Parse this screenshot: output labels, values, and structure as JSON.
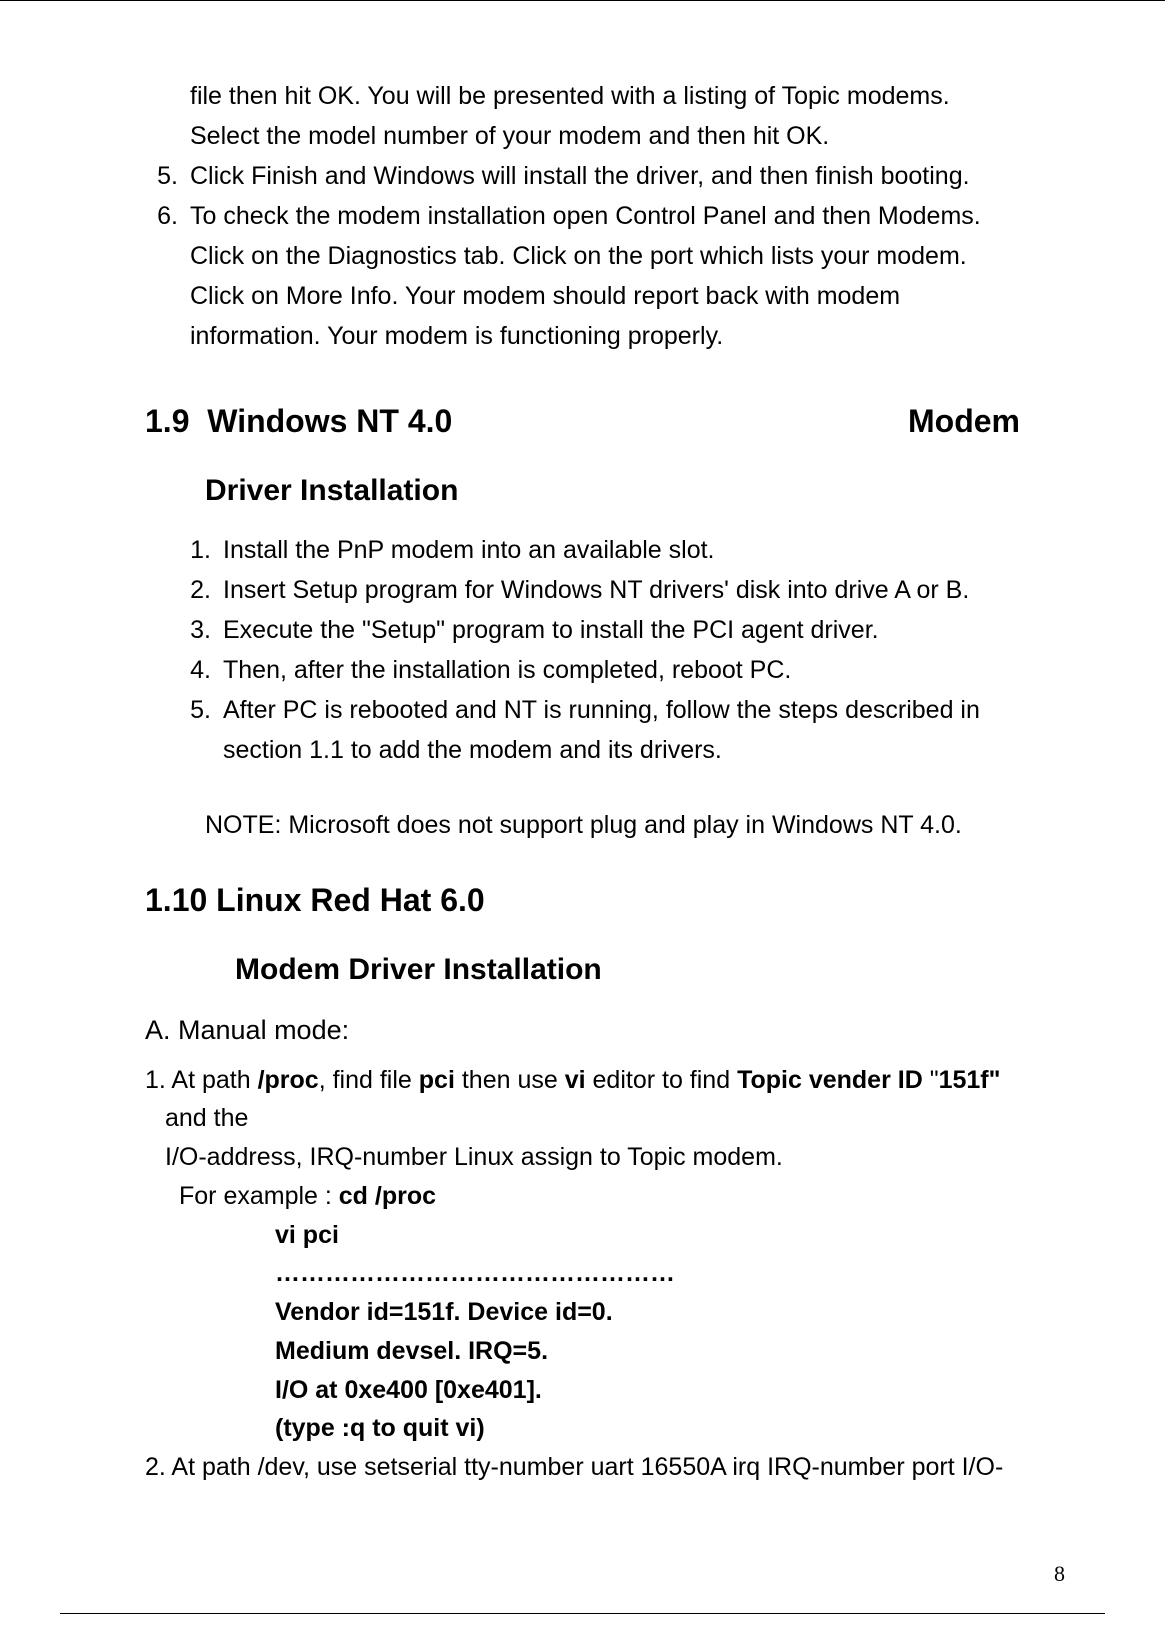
{
  "top_list": {
    "items": [
      {
        "num": "",
        "text": "file then hit OK. You will be presented with a listing of Topic modems. Select the model number of your modem and then hit OK."
      },
      {
        "num": "5.",
        "text": "Click Finish and Windows will install the driver, and then finish booting."
      },
      {
        "num": "6.",
        "text": "To check the modem installation open Control Panel and then Modems. Click on the Diagnostics tab. Click on the port which lists your modem. Click on More Info. Your modem should report back with modem information. Your modem is functioning properly."
      }
    ]
  },
  "section_19": {
    "number": "1.9",
    "title_left": "Windows NT 4.0",
    "title_right": "Modem",
    "subtitle": "Driver Installation",
    "items": [
      {
        "num": "1.",
        "text": "Install the PnP modem into an available slot."
      },
      {
        "num": "2.",
        "text": "Insert Setup program for Windows NT drivers' disk into drive A or B."
      },
      {
        "num": "3.",
        "text": "Execute the \"Setup\" program to install the PCI agent driver."
      },
      {
        "num": "4.",
        "text": "Then, after the installation is completed, reboot PC."
      },
      {
        "num": "5.",
        "text": "After PC is rebooted and NT is running, follow the steps described in section 1.1 to add the modem and its drivers."
      }
    ],
    "note": "NOTE: Microsoft does not support plug and play in Windows NT 4.0."
  },
  "section_110": {
    "number": "1.10",
    "title": "Linux Red Hat 6.0",
    "subtitle": "Modem Driver Installation",
    "mode_label": "A. Manual mode:",
    "step1": {
      "prefix": "1. At path ",
      "b1": "/proc",
      "mid1": ", find file ",
      "b2": "pci",
      "mid2": " then use ",
      "b3": "vi",
      "mid3": " editor to find ",
      "b4": "Topic vender ID",
      "mid4": " \"",
      "b5": "151f\"",
      "tail_line1": "and the",
      "line2": "I/O-address, IRQ-number Linux assign to Topic modem.",
      "line3_pre": "For example : ",
      "line3_b": "cd /proc"
    },
    "code": {
      "l1": "vi pci",
      "l2": "…………………………………………",
      "l3": "Vendor id=151f.    Device id=0.",
      "l4": "Medium devsel.    IRQ=5.",
      "l5": "I/O at 0xe400 [0xe401].",
      "l6": "(type :q to quit vi)"
    },
    "step2": "2. At path /dev, use setserial tty-number uart 16550A irq IRQ-number port I/O-"
  },
  "page_number": "8"
}
